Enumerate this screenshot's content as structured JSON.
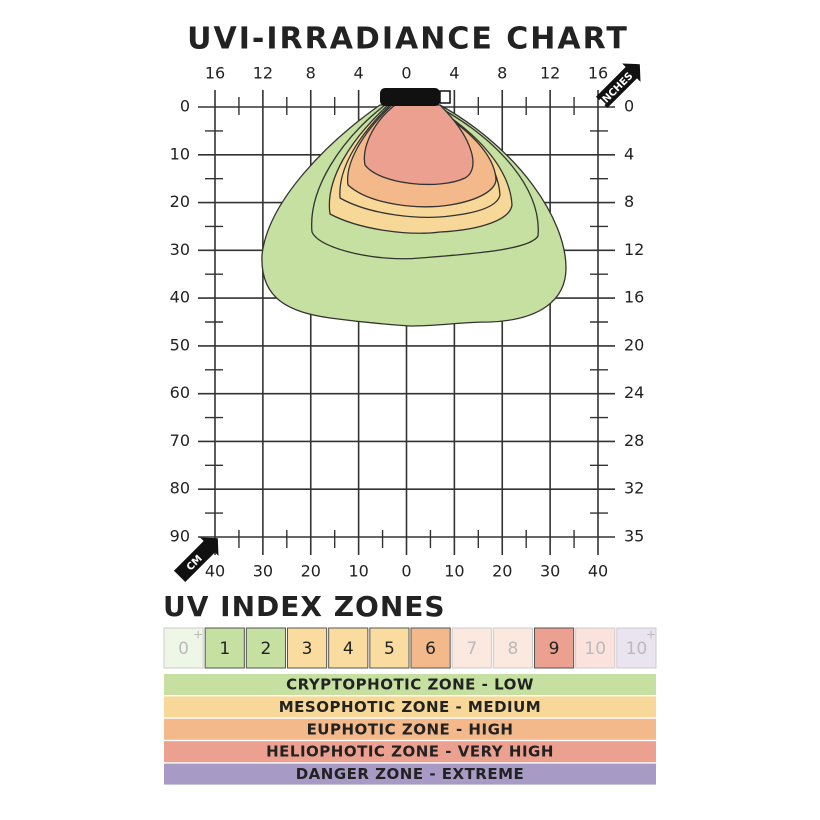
{
  "header": {
    "title": "UVI-IRRADIANCE CHART"
  },
  "top_axis": {
    "unit": "INCHES",
    "labels": [
      16,
      12,
      8,
      4,
      0,
      4,
      8,
      12,
      16
    ]
  },
  "left_axis": {
    "unit": "CM",
    "labels": [
      0,
      10,
      20,
      30,
      40,
      50,
      60,
      70,
      80,
      90
    ]
  },
  "right_axis": {
    "labels": [
      0,
      4,
      8,
      12,
      16,
      20,
      24,
      28,
      32,
      35
    ]
  },
  "bottom_axis": {
    "labels": [
      40,
      30,
      20,
      10,
      0,
      10,
      20,
      30,
      40
    ]
  },
  "zones": {
    "title": "UV INDEX ZONES",
    "cells": [
      {
        "label": "0",
        "sup": "+"
      },
      {
        "label": "1"
      },
      {
        "label": "2"
      },
      {
        "label": "3"
      },
      {
        "label": "4"
      },
      {
        "label": "5"
      },
      {
        "label": "6"
      },
      {
        "label": "7"
      },
      {
        "label": "8"
      },
      {
        "label": "9"
      },
      {
        "label": "10"
      },
      {
        "label": "10",
        "sup": "+"
      }
    ],
    "bands": [
      "CRYPTOPHOTIC ZONE - LOW",
      "MESOPHOTIC ZONE - MEDIUM",
      "EUPHOTIC ZONE - HIGH",
      "HELIOPHOTIC ZONE - VERY HIGH",
      "DANGER ZONE - EXTREME"
    ]
  }
}
